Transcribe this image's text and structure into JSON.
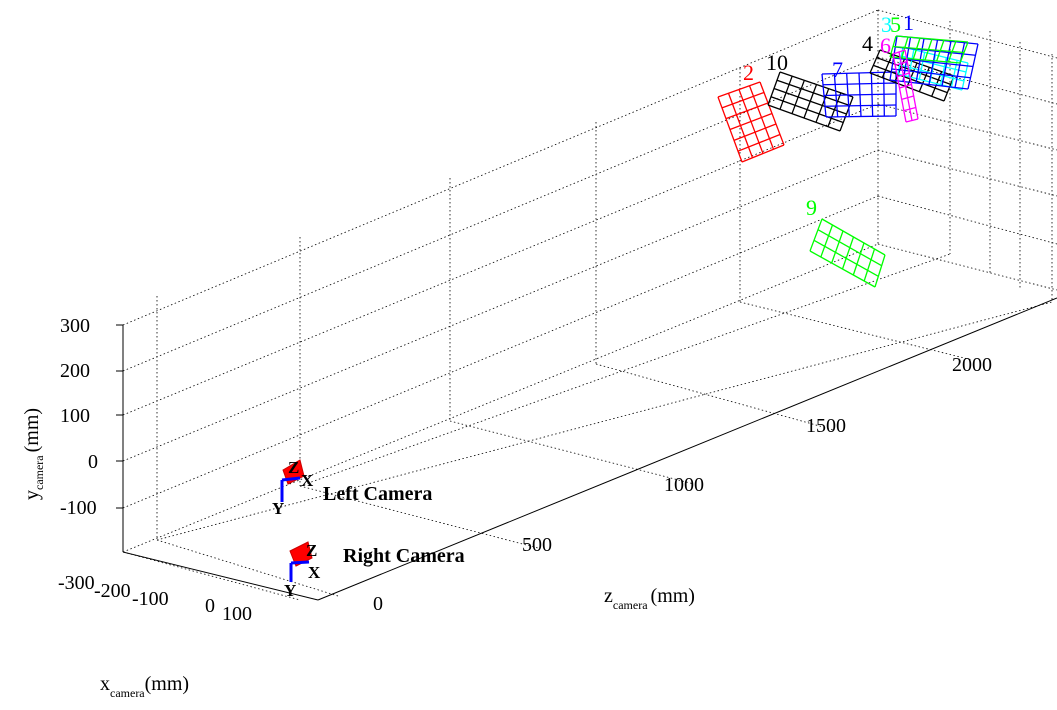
{
  "chart_data": {
    "type": "3d-extrinsic-plot",
    "x_axis": {
      "label_main": "x",
      "label_sub": "camera",
      "label_unit": "(mm)",
      "ticks": [
        "-300",
        "-200",
        "-100",
        "0",
        "100"
      ]
    },
    "y_axis": {
      "label_main": "y",
      "label_sub": "camera",
      "label_unit": "(mm)",
      "ticks": [
        "300",
        "200",
        "100",
        "0",
        "-100"
      ]
    },
    "z_axis": {
      "label_main": "z",
      "label_sub": "camera",
      "label_unit": "(mm)",
      "ticks": [
        "0",
        "500",
        "1000",
        "1500",
        "2000"
      ]
    },
    "grid": true,
    "cameras": [
      {
        "name": "Left Camera",
        "axis_letters": [
          "Z",
          "X",
          "Y"
        ]
      },
      {
        "name": "Right Camera",
        "axis_letters": [
          "Z",
          "X",
          "Y"
        ]
      }
    ],
    "boards": [
      {
        "id": "1",
        "color": "#0000ff"
      },
      {
        "id": "2",
        "color": "#ff0000"
      },
      {
        "id": "3",
        "color": "#00ffff"
      },
      {
        "id": "4",
        "color": "#000000"
      },
      {
        "id": "5",
        "color": "#00ff00"
      },
      {
        "id": "6",
        "color": "#ff00ff"
      },
      {
        "id": "7",
        "color": "#0000ff"
      },
      {
        "id": "9",
        "color": "#00ff00"
      },
      {
        "id": "10",
        "color": "#000000"
      }
    ]
  }
}
